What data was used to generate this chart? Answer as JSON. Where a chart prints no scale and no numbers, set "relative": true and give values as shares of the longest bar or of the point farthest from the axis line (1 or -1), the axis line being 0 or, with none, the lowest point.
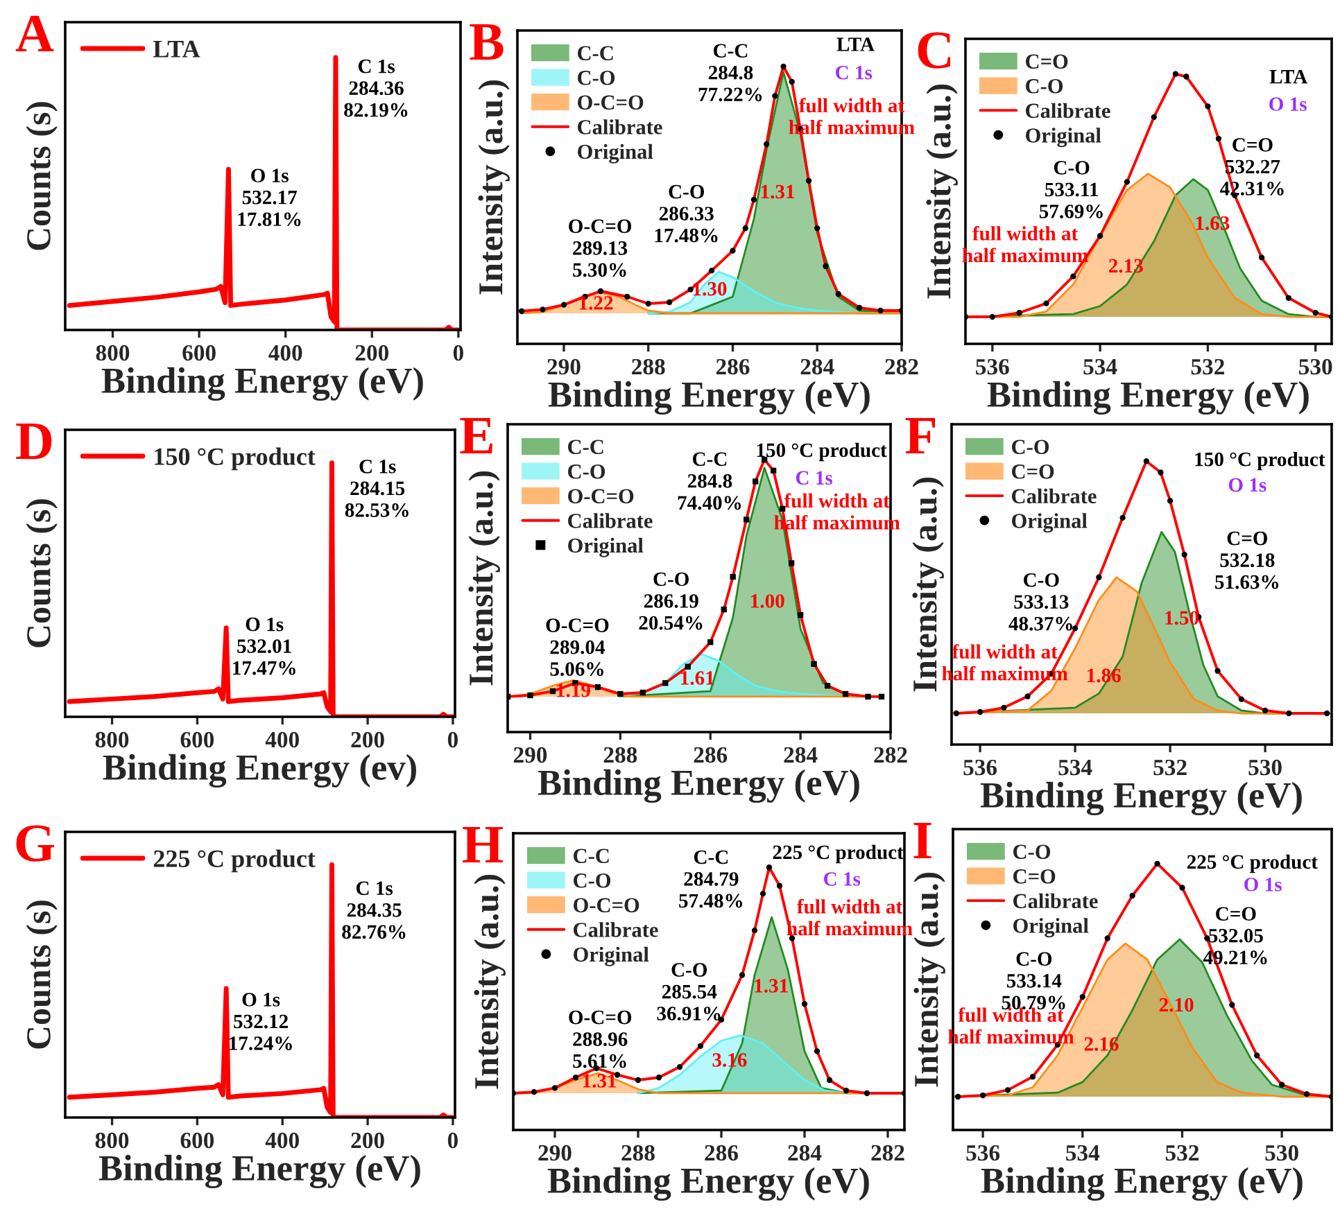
{
  "chart_data": [
    {
      "type": "line",
      "title": "A",
      "xlabel": "Binding Energy (eV)",
      "ylabel": "Counts (s)",
      "relative": true,
      "tick_labels": "x",
      "legend": "top left",
      "xlim": [
        910,
        -5
      ],
      "xticks": [
        800,
        600,
        400,
        200,
        0
      ],
      "series": [
        {
          "name": "LTA",
          "color": "#ff0000",
          "x": [
            900,
            800,
            700,
            600,
            560,
            550,
            540,
            532,
            527,
            500,
            400,
            310,
            303,
            295,
            287,
            284,
            281,
            200,
            100,
            30,
            22,
            15,
            0
          ],
          "values": [
            0.09,
            0.105,
            0.12,
            0.14,
            0.15,
            0.16,
            0.1,
            0.59,
            0.09,
            0.095,
            0.11,
            0.13,
            0.135,
            0.05,
            0.03,
            1.0,
            0.0,
            0.0,
            0.0,
            0.0,
            0.01,
            0.0,
            0.0
          ]
        }
      ],
      "annotations": [
        "O 1s\n532.17\n17.81%",
        "C 1s\n284.36\n82.19%"
      ]
    },
    {
      "type": "area",
      "title": "B",
      "xlabel": "Binding Energy (eV)",
      "ylabel": "Intensity (a.u.)",
      "relative": true,
      "tick_labels": "x",
      "legend": "top left",
      "xlim": [
        291.1,
        282
      ],
      "xticks": [
        290,
        288,
        286,
        284,
        282
      ],
      "series": [
        {
          "name": "C-C",
          "color": "#228b22",
          "x": [
            288,
            287,
            286,
            285.5,
            285.2,
            284.8,
            284.4,
            284,
            283.5,
            283,
            282
          ],
          "values": [
            0.11,
            0.11,
            0.17,
            0.45,
            0.7,
            0.98,
            0.76,
            0.4,
            0.17,
            0.12,
            0.11
          ]
        },
        {
          "name": "C-O",
          "color": "#5ff0f5",
          "x": [
            288,
            287.5,
            287,
            286.7,
            286.33,
            286,
            285.5,
            285,
            284.5,
            284,
            283,
            282
          ],
          "values": [
            0.11,
            0.115,
            0.15,
            0.21,
            0.26,
            0.24,
            0.19,
            0.15,
            0.13,
            0.12,
            0.11,
            0.11
          ]
        },
        {
          "name": "O-C=O",
          "color": "#ff8c1a",
          "x": [
            291,
            290.5,
            290,
            289.5,
            289.13,
            288.7,
            288.3,
            288,
            287.5,
            287,
            282
          ],
          "values": [
            0.11,
            0.115,
            0.14,
            0.175,
            0.185,
            0.17,
            0.14,
            0.12,
            0.11,
            0.11,
            0.11
          ]
        },
        {
          "name": "Calibrate",
          "type": "line",
          "color": "#ff0000",
          "x": [
            291,
            290.5,
            290,
            289.5,
            289.13,
            288.5,
            288,
            287.5,
            287,
            286.5,
            286,
            285.7,
            285.5,
            285.2,
            285,
            284.8,
            284.6,
            284.4,
            284.2,
            284,
            283.8,
            283.5,
            283,
            282.5,
            282
          ],
          "values": [
            0.118,
            0.124,
            0.141,
            0.17,
            0.19,
            0.17,
            0.145,
            0.15,
            0.196,
            0.264,
            0.336,
            0.417,
            0.52,
            0.72,
            0.894,
            1.0,
            0.945,
            0.775,
            0.588,
            0.417,
            0.28,
            0.18,
            0.13,
            0.12,
            0.12
          ]
        },
        {
          "name": "Original",
          "type": "scatter",
          "marker": "circle",
          "color": "#000000",
          "x": [
            291,
            290.5,
            290,
            289.5,
            289.13,
            288.5,
            288,
            287.5,
            287,
            286.5,
            286,
            285.7,
            285.5,
            285.2,
            285,
            284.8,
            284.6,
            284.4,
            284.2,
            284,
            283.8,
            283.5,
            283,
            282.5,
            282
          ],
          "values": [
            0.118,
            0.124,
            0.141,
            0.17,
            0.19,
            0.17,
            0.145,
            0.15,
            0.196,
            0.264,
            0.336,
            0.417,
            0.52,
            0.72,
            0.894,
            1.0,
            0.945,
            0.775,
            0.588,
            0.417,
            0.28,
            0.18,
            0.13,
            0.12,
            0.12
          ]
        }
      ],
      "annotations": [
        "C-C\n284.8\n77.22%",
        "C-O\n286.33\n17.48%",
        "O-C=O\n289.13\n5.30%",
        "1.31",
        "1.30",
        "1.22",
        "full width at\nhalf maximum",
        "LTA",
        "C 1s"
      ]
    },
    {
      "type": "area",
      "title": "C",
      "xlabel": "Binding Energy (eV)",
      "ylabel": "Intensity (a.u.)",
      "relative": true,
      "tick_labels": "x",
      "legend": "top left",
      "xlim": [
        536.5,
        529.7
      ],
      "xticks": [
        536,
        534,
        532,
        530
      ],
      "series": [
        {
          "name": "C=O",
          "color": "#228b22",
          "x": [
            536.5,
            534.5,
            534,
            533.5,
            533,
            532.6,
            532.27,
            532,
            531.7,
            531.4,
            531,
            530.5,
            530,
            529.7
          ],
          "values": [
            0.1,
            0.11,
            0.14,
            0.22,
            0.38,
            0.55,
            0.61,
            0.57,
            0.43,
            0.28,
            0.16,
            0.11,
            0.1,
            0.1
          ]
        },
        {
          "name": "C-O",
          "color": "#ff8c1a",
          "x": [
            536.5,
            535.5,
            535,
            534.5,
            534,
            533.5,
            533.11,
            532.7,
            532.3,
            532,
            531.5,
            531,
            530.5,
            529.7
          ],
          "values": [
            0.1,
            0.1,
            0.12,
            0.22,
            0.4,
            0.57,
            0.63,
            0.58,
            0.45,
            0.32,
            0.17,
            0.11,
            0.1,
            0.1
          ]
        },
        {
          "name": "Calibrate",
          "type": "line",
          "color": "#ff0000",
          "x": [
            536.5,
            536,
            535.5,
            535,
            534.5,
            534,
            533.5,
            533,
            532.6,
            532.4,
            532,
            531.8,
            531.5,
            531,
            530.5,
            530,
            529.7
          ],
          "values": [
            0.1,
            0.1,
            0.115,
            0.15,
            0.25,
            0.4,
            0.6,
            0.84,
            1.0,
            0.99,
            0.88,
            0.76,
            0.55,
            0.32,
            0.17,
            0.115,
            0.1
          ]
        },
        {
          "name": "Original",
          "type": "scatter",
          "marker": "circle",
          "color": "#000000",
          "x": [
            536.5,
            536,
            535.5,
            535,
            534.5,
            534,
            533.5,
            533,
            532.6,
            532.4,
            532,
            531.8,
            531.5,
            531,
            530.5,
            530,
            529.7
          ],
          "values": [
            0.1,
            0.1,
            0.115,
            0.15,
            0.25,
            0.4,
            0.6,
            0.84,
            1.0,
            0.99,
            0.88,
            0.76,
            0.55,
            0.32,
            0.17,
            0.115,
            0.1
          ]
        }
      ],
      "annotations": [
        "C=O\n532.27\n42.31%",
        "C-O\n533.11\n57.69%",
        "1.63",
        "2.13",
        "full width at\nhalf maximum",
        "LTA",
        "O 1s"
      ]
    },
    {
      "type": "line",
      "title": "D",
      "xlabel": "Binding Energy (ev)",
      "ylabel": "Counts (s)",
      "relative": true,
      "tick_labels": "x",
      "legend": "top left",
      "xlim": [
        910,
        -5
      ],
      "xticks": [
        800,
        600,
        400,
        200,
        0
      ],
      "series": [
        {
          "name": "150 °C product",
          "color": "#ff0000",
          "x": [
            900,
            800,
            700,
            600,
            560,
            550,
            540,
            532,
            527,
            500,
            400,
            310,
            303,
            295,
            287,
            284,
            281,
            200,
            100,
            30,
            22,
            15,
            0
          ],
          "values": [
            0.06,
            0.07,
            0.08,
            0.095,
            0.1,
            0.11,
            0.07,
            0.35,
            0.06,
            0.065,
            0.075,
            0.09,
            0.095,
            0.04,
            0.02,
            1.0,
            0.0,
            0.0,
            0.0,
            0.0,
            0.01,
            0.0,
            0.0
          ]
        }
      ],
      "annotations": [
        "O 1s\n532.01\n17.47%",
        "C 1s\n284.15\n82.53%"
      ]
    },
    {
      "type": "area",
      "title": "E",
      "xlabel": "Binding Energy (eV)",
      "ylabel": "Intensity (a.u.)",
      "relative": true,
      "tick_labels": "x",
      "legend": "top left",
      "xlim": [
        290.5,
        282
      ],
      "xticks": [
        290,
        288,
        286,
        284,
        282
      ],
      "series": [
        {
          "name": "C-C",
          "color": "#228b22",
          "x": [
            288,
            286,
            285.5,
            285.2,
            284.8,
            284.4,
            284,
            283.5,
            283,
            282.5
          ],
          "values": [
            0.13,
            0.15,
            0.42,
            0.72,
            0.97,
            0.78,
            0.38,
            0.18,
            0.14,
            0.13
          ]
        },
        {
          "name": "C-O",
          "color": "#5ff0f5",
          "x": [
            288,
            287.5,
            287,
            286.6,
            286.19,
            285.8,
            285.4,
            285,
            284.5,
            284,
            283,
            282.5
          ],
          "values": [
            0.13,
            0.145,
            0.18,
            0.25,
            0.286,
            0.26,
            0.21,
            0.17,
            0.15,
            0.14,
            0.13,
            0.13
          ]
        },
        {
          "name": "O-C=O",
          "color": "#ff8c1a",
          "x": [
            290.5,
            290,
            289.5,
            289.04,
            288.6,
            288.2,
            287.8,
            282.5
          ],
          "values": [
            0.13,
            0.14,
            0.17,
            0.19,
            0.17,
            0.145,
            0.13,
            0.13
          ]
        },
        {
          "name": "Calibrate",
          "type": "line",
          "color": "#ff0000",
          "x": [
            290.5,
            290,
            289.5,
            289,
            288.5,
            288,
            287.5,
            287,
            286.5,
            286,
            285.7,
            285.5,
            285.2,
            285,
            284.8,
            284.6,
            284.4,
            284.2,
            284,
            283.7,
            283.4,
            283,
            282.5,
            282.2
          ],
          "values": [
            0.13,
            0.135,
            0.15,
            0.18,
            0.165,
            0.14,
            0.145,
            0.18,
            0.24,
            0.33,
            0.45,
            0.57,
            0.78,
            0.92,
            1.0,
            0.96,
            0.82,
            0.62,
            0.43,
            0.25,
            0.17,
            0.14,
            0.13,
            0.13
          ]
        },
        {
          "name": "Original",
          "type": "scatter",
          "marker": "square",
          "color": "#000000",
          "x": [
            290.5,
            290,
            289.5,
            289,
            288.5,
            288,
            287.5,
            287,
            286.5,
            286,
            285.7,
            285.5,
            285.2,
            285,
            284.8,
            284.6,
            284.4,
            284.2,
            284,
            283.7,
            283.4,
            283,
            282.5,
            282.2
          ],
          "values": [
            0.13,
            0.135,
            0.15,
            0.18,
            0.165,
            0.14,
            0.145,
            0.18,
            0.24,
            0.33,
            0.45,
            0.57,
            0.78,
            0.92,
            1.0,
            0.96,
            0.82,
            0.62,
            0.43,
            0.25,
            0.17,
            0.14,
            0.13,
            0.13
          ]
        }
      ],
      "annotations": [
        "C-C\n284.8\n74.40%",
        "C-O\n286.19\n20.54%",
        "O-C=O\n289.04\n5.06%",
        "1.00",
        "1.61",
        "1.19",
        "full width at\nhalf maximum",
        "150 °C product",
        "C 1s"
      ]
    },
    {
      "type": "area",
      "title": "F",
      "xlabel": "Binding Energy (eV)",
      "ylabel": "Intensity (a.u.)",
      "relative": true,
      "tick_labels": "x",
      "legend": "top left",
      "xlim": [
        536.6,
        528.6
      ],
      "xticks": [
        536,
        534,
        532,
        530
      ],
      "series": [
        {
          "name": "C-O",
          "color": "#228b22",
          "x": [
            536.6,
            534,
            533.5,
            533,
            532.6,
            532.18,
            531.9,
            531.6,
            531.3,
            531,
            530.5,
            530,
            528.6
          ],
          "values": [
            0.11,
            0.13,
            0.18,
            0.31,
            0.57,
            0.75,
            0.68,
            0.47,
            0.28,
            0.17,
            0.12,
            0.11,
            0.11
          ]
        },
        {
          "name": "C=O",
          "color": "#ff8c1a",
          "x": [
            536.6,
            535,
            534.5,
            534,
            533.5,
            533.13,
            532.7,
            532.3,
            532,
            531.5,
            531,
            530.5,
            528.6
          ],
          "values": [
            0.11,
            0.12,
            0.19,
            0.34,
            0.51,
            0.59,
            0.54,
            0.4,
            0.29,
            0.16,
            0.12,
            0.11,
            0.11
          ]
        },
        {
          "name": "Calibrate",
          "type": "line",
          "color": "#ff0000",
          "x": [
            536.5,
            536,
            535.5,
            535,
            534.5,
            534,
            533.5,
            533,
            532.5,
            532.2,
            532,
            531.7,
            531.4,
            531,
            530.5,
            530,
            529.5,
            528.7
          ],
          "values": [
            0.11,
            0.115,
            0.13,
            0.17,
            0.25,
            0.41,
            0.59,
            0.8,
            1.0,
            0.96,
            0.86,
            0.67,
            0.45,
            0.26,
            0.16,
            0.12,
            0.11,
            0.11
          ]
        },
        {
          "name": "Original",
          "type": "scatter",
          "marker": "circle",
          "color": "#000000",
          "x": [
            536.5,
            536,
            535.5,
            535,
            534.5,
            534,
            533.5,
            533,
            532.5,
            532.2,
            532,
            531.7,
            531.4,
            531,
            530.5,
            530,
            529.5,
            528.7
          ],
          "values": [
            0.11,
            0.115,
            0.13,
            0.17,
            0.25,
            0.41,
            0.59,
            0.8,
            1.0,
            0.96,
            0.86,
            0.67,
            0.45,
            0.26,
            0.16,
            0.12,
            0.11,
            0.11
          ]
        }
      ],
      "annotations": [
        "C=O\n532.18\n51.63%",
        "C-O\n533.13\n48.37%",
        "1.50",
        "1.86",
        "full width at\nhalf maximum",
        "150 °C product",
        "O 1s"
      ]
    },
    {
      "type": "line",
      "title": "G",
      "xlabel": "Binding Energy (eV)",
      "ylabel": "Counts (s)",
      "relative": true,
      "tick_labels": "x",
      "legend": "top left",
      "xlim": [
        910,
        -5
      ],
      "xticks": [
        800,
        600,
        400,
        200,
        0
      ],
      "series": [
        {
          "name": "225 °C product",
          "color": "#ff0000",
          "x": [
            900,
            800,
            700,
            600,
            560,
            550,
            540,
            532,
            527,
            500,
            400,
            310,
            303,
            295,
            287,
            284,
            281,
            200,
            100,
            30,
            22,
            15,
            0
          ],
          "values": [
            0.08,
            0.09,
            0.1,
            0.115,
            0.12,
            0.13,
            0.09,
            0.51,
            0.08,
            0.085,
            0.095,
            0.11,
            0.115,
            0.04,
            0.02,
            1.0,
            0.0,
            0.0,
            0.0,
            0.0,
            0.01,
            0.0,
            0.0
          ]
        }
      ],
      "annotations": [
        "O 1s\n532.12\n17.24%",
        "C 1s\n284.35\n82.76%"
      ]
    },
    {
      "type": "area",
      "title": "H",
      "xlabel": "Binding Energy (eV)",
      "ylabel": "Intensity (a.u.)",
      "relative": true,
      "tick_labels": "x",
      "legend": "top left",
      "xlim": [
        291,
        281.6
      ],
      "xticks": [
        290,
        288,
        286,
        284,
        282
      ],
      "series": [
        {
          "name": "C-C",
          "color": "#228b22",
          "x": [
            288,
            286,
            285.5,
            285.2,
            284.79,
            284.4,
            284,
            283.6,
            283,
            281.6
          ],
          "values": [
            0.14,
            0.15,
            0.33,
            0.59,
            0.81,
            0.61,
            0.3,
            0.16,
            0.14,
            0.14
          ]
        },
        {
          "name": "C-O",
          "color": "#5ff0f5",
          "x": [
            288,
            287.5,
            287,
            286.5,
            286,
            285.54,
            285,
            284.5,
            284,
            283.5,
            283,
            281.6
          ],
          "values": [
            0.14,
            0.16,
            0.21,
            0.28,
            0.34,
            0.36,
            0.33,
            0.26,
            0.19,
            0.15,
            0.14,
            0.14
          ]
        },
        {
          "name": "O-C=O",
          "color": "#ff8c1a",
          "x": [
            291,
            290.5,
            290,
            289.5,
            288.96,
            288.5,
            288,
            287.5,
            281.6
          ],
          "values": [
            0.14,
            0.14,
            0.16,
            0.19,
            0.216,
            0.19,
            0.155,
            0.14,
            0.14
          ]
        },
        {
          "name": "Calibrate",
          "type": "line",
          "color": "#ff0000",
          "x": [
            291,
            290.5,
            290,
            289.5,
            289,
            288.5,
            288,
            287.5,
            287,
            286.5,
            286,
            285.5,
            285.2,
            285,
            284.85,
            284.6,
            284.3,
            284,
            283.7,
            283.4,
            283,
            282.5,
            281.6
          ],
          "values": [
            0.14,
            0.145,
            0.16,
            0.2,
            0.235,
            0.21,
            0.19,
            0.2,
            0.24,
            0.32,
            0.42,
            0.59,
            0.76,
            0.9,
            1.0,
            0.93,
            0.73,
            0.48,
            0.3,
            0.19,
            0.15,
            0.14,
            0.14
          ]
        },
        {
          "name": "Original",
          "type": "scatter",
          "marker": "circle",
          "color": "#000000",
          "x": [
            291,
            290.5,
            290,
            289.5,
            289,
            288.5,
            288,
            287.5,
            287,
            286.5,
            286,
            285.5,
            285.2,
            285,
            284.85,
            284.6,
            284.3,
            284,
            283.7,
            283.4,
            283,
            282.5,
            281.6
          ],
          "values": [
            0.14,
            0.145,
            0.16,
            0.2,
            0.235,
            0.21,
            0.19,
            0.2,
            0.24,
            0.32,
            0.42,
            0.59,
            0.76,
            0.9,
            1.0,
            0.93,
            0.73,
            0.48,
            0.3,
            0.19,
            0.15,
            0.14,
            0.14
          ]
        }
      ],
      "annotations": [
        "C-C\n284.79\n57.48%",
        "C-O\n285.54\n36.91%",
        "O-C=O\n288.96\n5.61%",
        "1.31",
        "3.16",
        "1.31",
        "full width at\nhalf maximum",
        "225 °C product",
        "C 1s"
      ]
    },
    {
      "type": "area",
      "title": "I",
      "xlabel": "Binding Energy (eV)",
      "ylabel": "Intensity (a.u.)",
      "relative": true,
      "tick_labels": "x",
      "legend": "top left",
      "xlim": [
        536.6,
        529
      ],
      "xticks": [
        536,
        534,
        532,
        530
      ],
      "series": [
        {
          "name": "C-O",
          "color": "#228b22",
          "x": [
            536.6,
            534.5,
            534,
            533.5,
            533,
            532.5,
            532.05,
            531.6,
            531.1,
            530.6,
            530.2,
            529.5,
            529
          ],
          "values": [
            0.125,
            0.14,
            0.18,
            0.28,
            0.45,
            0.64,
            0.716,
            0.63,
            0.43,
            0.26,
            0.17,
            0.13,
            0.125
          ]
        },
        {
          "name": "C=O",
          "color": "#ff8c1a",
          "x": [
            536.6,
            535.5,
            535,
            534.5,
            534,
            533.5,
            533.14,
            532.7,
            532.2,
            531.8,
            531.3,
            530.8,
            530,
            529
          ],
          "values": [
            0.125,
            0.13,
            0.16,
            0.28,
            0.46,
            0.64,
            0.7,
            0.64,
            0.46,
            0.31,
            0.18,
            0.14,
            0.125,
            0.125
          ]
        },
        {
          "name": "Calibrate",
          "type": "line",
          "color": "#ff0000",
          "x": [
            536.5,
            536,
            535.5,
            535,
            534.5,
            534,
            533.5,
            533,
            532.5,
            532,
            531.5,
            531,
            530.5,
            530,
            529.5,
            529
          ],
          "values": [
            0.125,
            0.13,
            0.15,
            0.2,
            0.32,
            0.5,
            0.72,
            0.88,
            1.0,
            0.91,
            0.72,
            0.47,
            0.28,
            0.17,
            0.135,
            0.125
          ]
        },
        {
          "name": "Original",
          "type": "scatter",
          "marker": "circle",
          "color": "#000000",
          "x": [
            536.5,
            536,
            535.5,
            535,
            534.5,
            534,
            533.5,
            533,
            532.5,
            532,
            531.5,
            531,
            530.5,
            530,
            529.5,
            529
          ],
          "values": [
            0.125,
            0.13,
            0.15,
            0.2,
            0.32,
            0.5,
            0.72,
            0.88,
            1.0,
            0.91,
            0.72,
            0.47,
            0.28,
            0.17,
            0.135,
            0.125
          ]
        }
      ],
      "annotations": [
        "C=O\n532.05\n49.21%",
        "C-O\n533.14\n50.79%",
        "2.10",
        "2.16",
        "full width at\nhalf maximum",
        "225 °C product",
        "O 1s"
      ]
    }
  ]
}
